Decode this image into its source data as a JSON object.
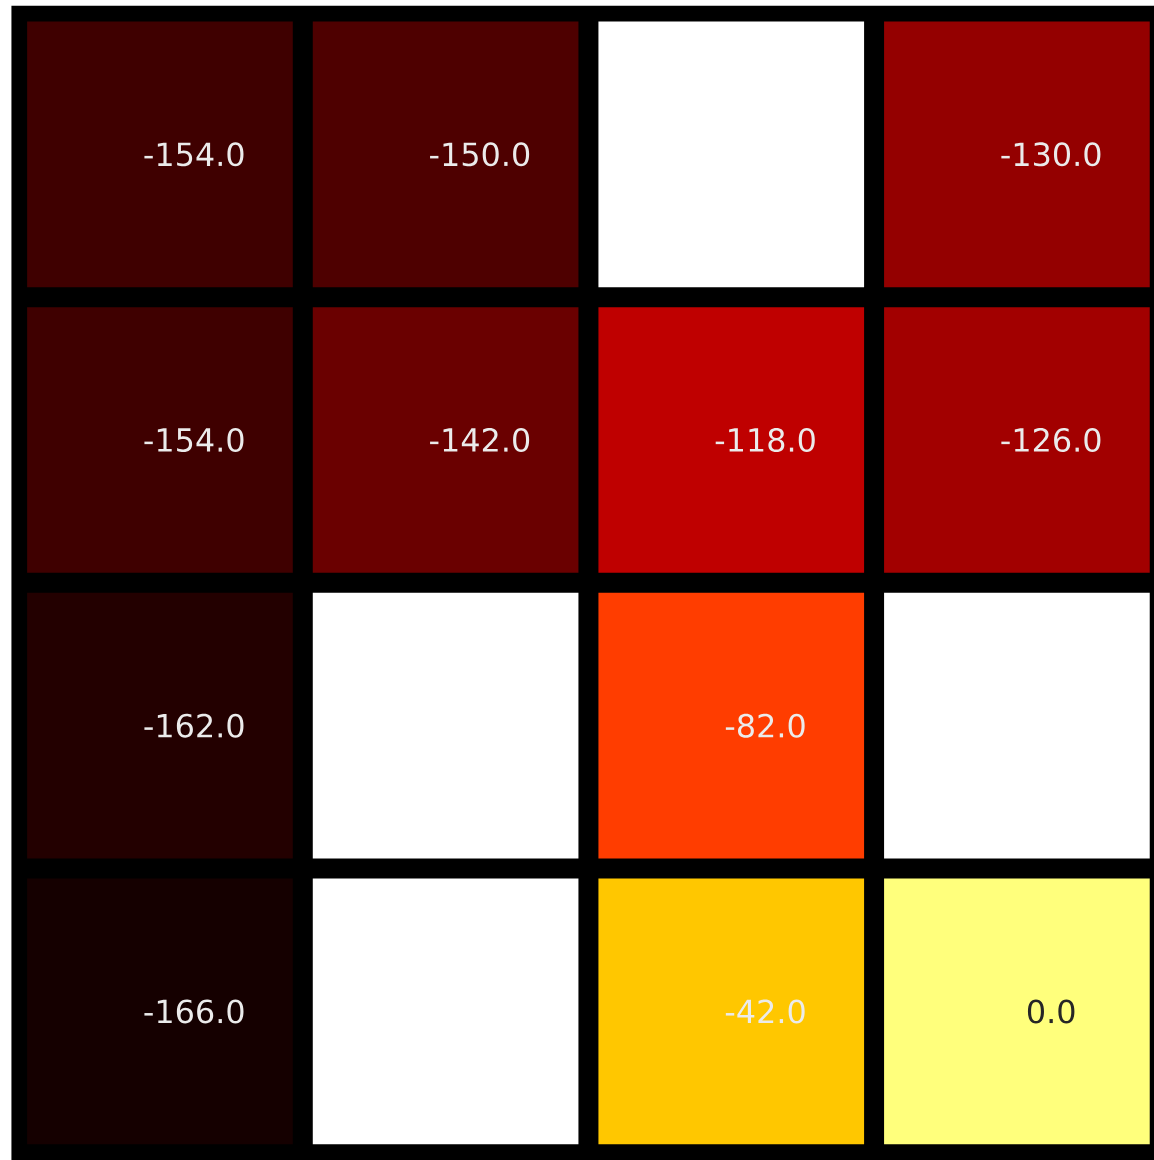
{
  "chart_data": {
    "type": "heatmap",
    "categories": [
      null,
      null,
      null,
      null
    ],
    "y_categories": [
      null,
      null,
      null,
      null
    ],
    "cells": [
      [
        -154.0,
        -150.0,
        null,
        -130.0
      ],
      [
        -154.0,
        -142.0,
        -118.0,
        -126.0
      ],
      [
        -162.0,
        null,
        -82.0,
        null
      ],
      [
        -166.0,
        null,
        -42.0,
        0.0
      ]
    ],
    "cell_labels": [
      [
        "-154.0",
        "-150.0",
        null,
        "-130.0"
      ],
      [
        "-154.0",
        "-142.0",
        "-118.0",
        "-126.0"
      ],
      [
        "-162.0",
        null,
        "-82.0",
        null
      ],
      [
        "-166.0",
        null,
        "-42.0",
        "0.0"
      ]
    ],
    "data_labels": true
  }
}
